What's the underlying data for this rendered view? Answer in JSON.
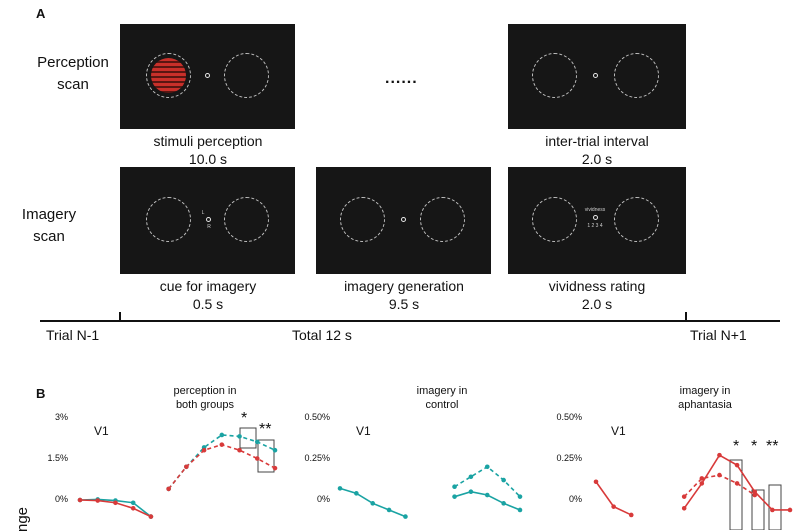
{
  "panel_a": {
    "letter": "A",
    "perception_label": "Perception\nscan",
    "imagery_label": "Imagery\nscan",
    "ellipsis": "......",
    "frames": {
      "stimuli": {
        "caption": "stimuli perception",
        "duration": "10.0 s"
      },
      "iti": {
        "caption": "inter-trial interval",
        "duration": "2.0 s"
      },
      "cue": {
        "caption": "cue for imagery",
        "duration": "0.5 s",
        "cue_letters": [
          "L",
          "R"
        ]
      },
      "generation": {
        "caption": "imagery generation",
        "duration": "9.5 s"
      },
      "vividness": {
        "caption": "vividness rating",
        "duration": "2.0 s",
        "prompt": "vividness",
        "scale": "1 2 3 4"
      }
    },
    "timeline": {
      "left": "Trial N-1",
      "center": "Total 12 s",
      "right": "Trial N+1"
    },
    "colors": {
      "screen": "#161616",
      "stimulus": "#c8302a"
    }
  },
  "panel_b": {
    "letter": "B",
    "ylabel_fragment": "nge",
    "colors": {
      "control": "#1aa3a3",
      "aphantasia": "#d83a3a"
    }
  },
  "chart_data": [
    {
      "type": "line",
      "title": "perception in\nboth groups",
      "region": "V1",
      "yticks": [
        "3%",
        "1.5%",
        "0%"
      ],
      "ylim": [
        -0.5,
        3
      ],
      "x": [
        1,
        2,
        3,
        4,
        5,
        6,
        7,
        8,
        9,
        10,
        11,
        12
      ],
      "series": [
        {
          "color": "#1aa3a3",
          "style": "solid",
          "values": [
            0,
            0.02,
            -0.02,
            -0.1,
            -0.6,
            null,
            null,
            null,
            null,
            null,
            null,
            null
          ]
        },
        {
          "color": "#d83a3a",
          "style": "solid",
          "values": [
            0,
            -0.02,
            -0.1,
            -0.3,
            -0.6,
            null,
            null,
            null,
            null,
            null,
            null,
            null
          ]
        },
        {
          "color": "#1aa3a3",
          "style": "dashed",
          "values": [
            null,
            null,
            null,
            null,
            null,
            0.4,
            1.2,
            1.9,
            2.35,
            2.3,
            2.1,
            1.8
          ]
        },
        {
          "color": "#d83a3a",
          "style": "dashed",
          "values": [
            null,
            null,
            null,
            null,
            null,
            0.4,
            1.2,
            1.8,
            2.0,
            1.8,
            1.5,
            1.15
          ]
        }
      ],
      "annotations": [
        "*",
        "**"
      ]
    },
    {
      "type": "line",
      "title": "imagery in\ncontrol",
      "region": "V1",
      "yticks": [
        "0.50%",
        "0.25%",
        "0%"
      ],
      "ylim": [
        -0.1,
        0.5
      ],
      "x": [
        1,
        2,
        3,
        4,
        5,
        6,
        7,
        8,
        9,
        10,
        11,
        12
      ],
      "series": [
        {
          "color": "#1aa3a3",
          "style": "solid",
          "values": [
            0.07,
            0.04,
            -0.02,
            -0.06,
            -0.1,
            null,
            null,
            0.02,
            0.05,
            0.03,
            -0.02,
            -0.06
          ]
        },
        {
          "color": "#1aa3a3",
          "style": "dashed",
          "values": [
            null,
            null,
            null,
            null,
            null,
            null,
            null,
            0.08,
            0.14,
            0.2,
            0.12,
            0.02
          ]
        }
      ],
      "annotations": []
    },
    {
      "type": "line",
      "title": "imagery in\naphantasia",
      "region": "V1",
      "yticks": [
        "0.50%",
        "0.25%",
        "0%"
      ],
      "ylim": [
        -0.1,
        0.5
      ],
      "x": [
        1,
        2,
        3,
        4,
        5,
        6,
        7,
        8,
        9,
        10,
        11,
        12
      ],
      "series": [
        {
          "color": "#d83a3a",
          "style": "solid",
          "values": [
            0.11,
            -0.04,
            -0.09,
            null,
            null,
            -0.05,
            0.1,
            0.27,
            0.21,
            0.05,
            -0.06,
            -0.06
          ]
        },
        {
          "color": "#d83a3a",
          "style": "dashed",
          "values": [
            null,
            null,
            null,
            null,
            null,
            0.02,
            0.13,
            0.15,
            0.1,
            0.03,
            null,
            null
          ]
        }
      ],
      "annotations": [
        "*",
        "*",
        "**"
      ]
    }
  ]
}
